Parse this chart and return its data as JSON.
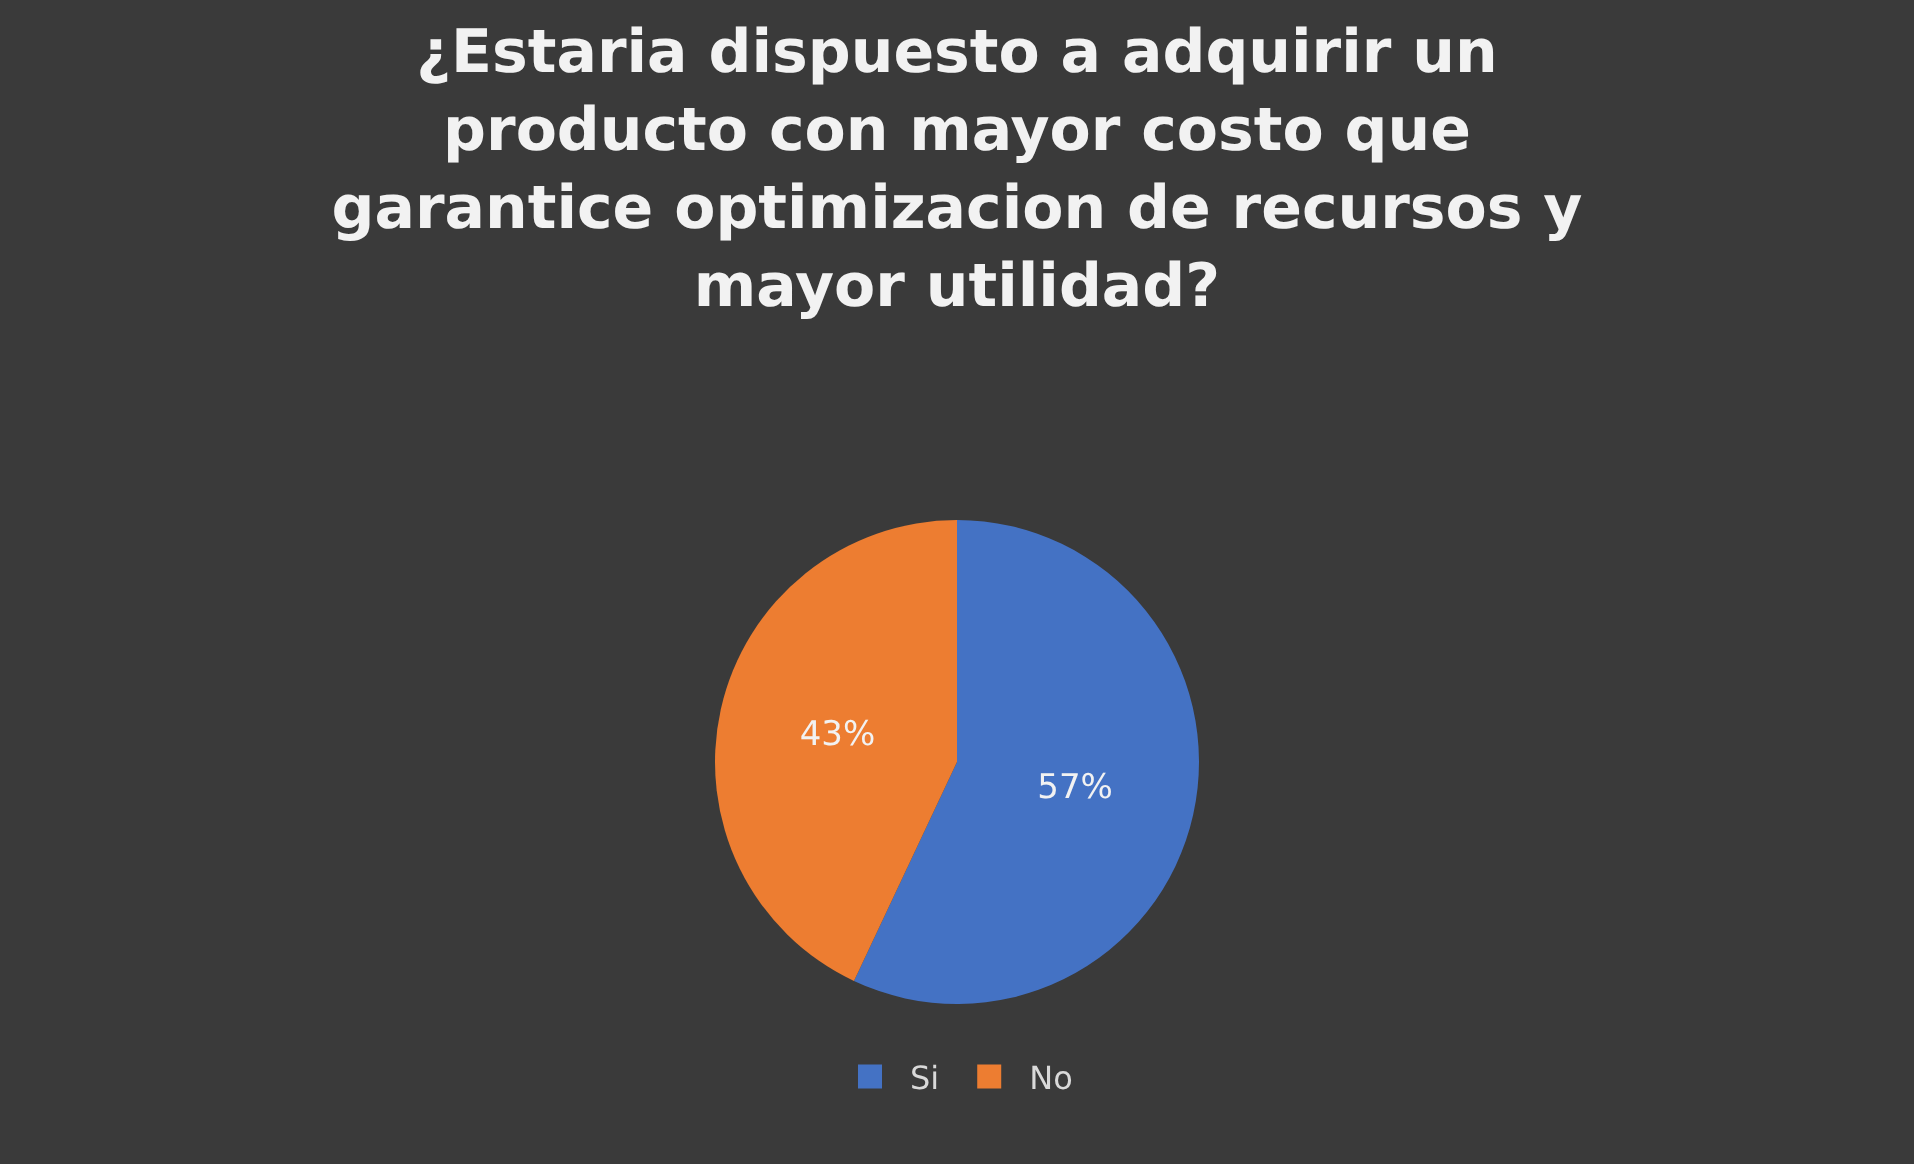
{
  "chart_data": {
    "type": "pie",
    "title": "¿Estaria dispuesto a adquirir un producto con mayor costo que garantice optimizacion de recursos y mayor utilidad?",
    "categories": [
      "Si",
      "No"
    ],
    "values": [
      57,
      43
    ],
    "colors": [
      "#4472c4",
      "#ed7d31"
    ],
    "value_labels": [
      "57%",
      "43%"
    ],
    "legend": "bottom"
  }
}
